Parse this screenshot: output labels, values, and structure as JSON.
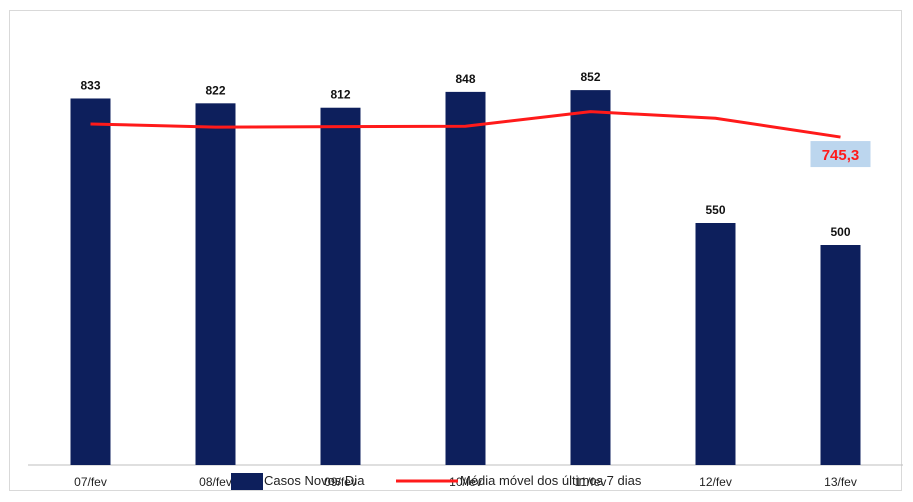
{
  "chart_data": {
    "type": "bar",
    "categories": [
      "07/fev",
      "08/fev",
      "09/fev",
      "10/fev",
      "11/fev",
      "12/fev",
      "13/fev"
    ],
    "series": [
      {
        "name": "Casos Novos Dia",
        "type": "bar",
        "values": [
          833,
          822,
          812,
          848,
          852,
          550,
          500
        ]
      },
      {
        "name": "Média móvel dos últimos 7 dias",
        "type": "line",
        "values": [
          775,
          768,
          769,
          770,
          803,
          788,
          745.3
        ]
      }
    ],
    "data_labels": [
      "833",
      "822",
      "812",
      "848",
      "852",
      "550",
      "500"
    ],
    "callout": "745,3",
    "ylim": [
      0,
      1000
    ],
    "legend_position": "bottom",
    "grid": false
  },
  "colors": {
    "bar": "#0d1f5c",
    "line": "#ff1a1a",
    "callout_bg": "#bcd6ee",
    "callout_text": "#ff1a1a"
  }
}
